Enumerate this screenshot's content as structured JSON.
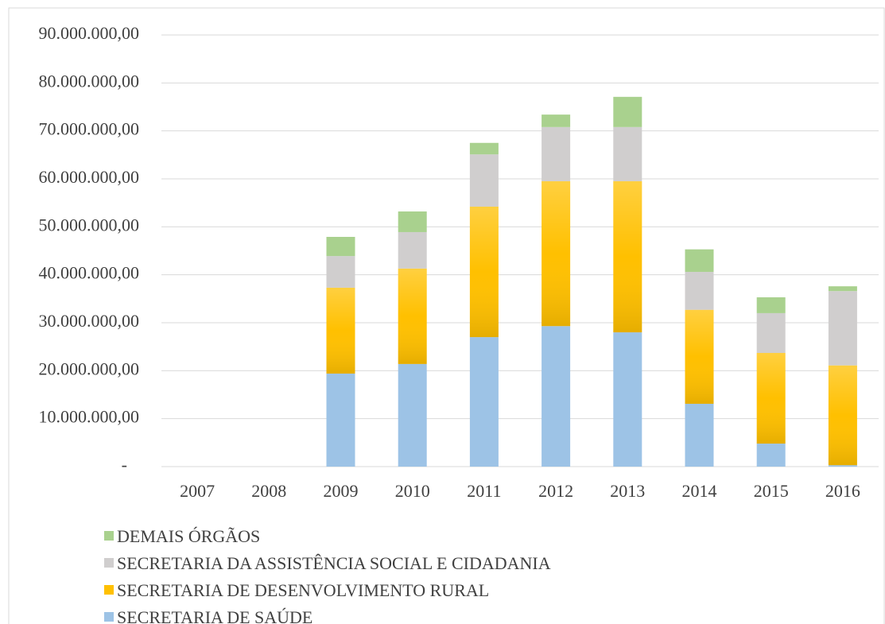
{
  "chart_data": {
    "type": "stacked_bar",
    "categories": [
      "2007",
      "2008",
      "2009",
      "2010",
      "2011",
      "2012",
      "2013",
      "2014",
      "2015",
      "2016"
    ],
    "series": [
      {
        "name": "SECRETARIA DE SAÚDE",
        "color": "#9dc3e6",
        "values": [
          0,
          0,
          19400000,
          21400000,
          27000000,
          29300000,
          28000000,
          13100000,
          4800000,
          300000
        ]
      },
      {
        "name": "SECRETARIA DE DESENVOLVIMENTO RURAL",
        "color": "#ffc000",
        "values": [
          0,
          0,
          17900000,
          19900000,
          27200000,
          30200000,
          31500000,
          19600000,
          18900000,
          20800000
        ]
      },
      {
        "name": "SECRETARIA DA ASSISTÊNCIA SOCIAL E CIDADANIA",
        "color": "#d0cece",
        "values": [
          0,
          0,
          6600000,
          7600000,
          10900000,
          11300000,
          11300000,
          7900000,
          8300000,
          15500000
        ]
      },
      {
        "name": "DEMAIS ÓRGÃOS",
        "color": "#a9d18e",
        "values": [
          0,
          0,
          4000000,
          4300000,
          2400000,
          2600000,
          6300000,
          4700000,
          3300000,
          1000000
        ]
      }
    ],
    "ylim": [
      0,
      90000000
    ],
    "yticks": [
      {
        "value": 0,
        "label": "-"
      },
      {
        "value": 10000000,
        "label": "10.000.000,00"
      },
      {
        "value": 20000000,
        "label": "20.000.000,00"
      },
      {
        "value": 30000000,
        "label": "30.000.000,00"
      },
      {
        "value": 40000000,
        "label": "40.000.000,00"
      },
      {
        "value": 50000000,
        "label": "50.000.000,00"
      },
      {
        "value": 60000000,
        "label": "60.000.000,00"
      },
      {
        "value": 70000000,
        "label": "70.000.000,00"
      },
      {
        "value": 80000000,
        "label": "80.000.000,00"
      },
      {
        "value": 90000000,
        "label": "90.000.000,00"
      }
    ],
    "grid": true,
    "legend": "bottom"
  }
}
